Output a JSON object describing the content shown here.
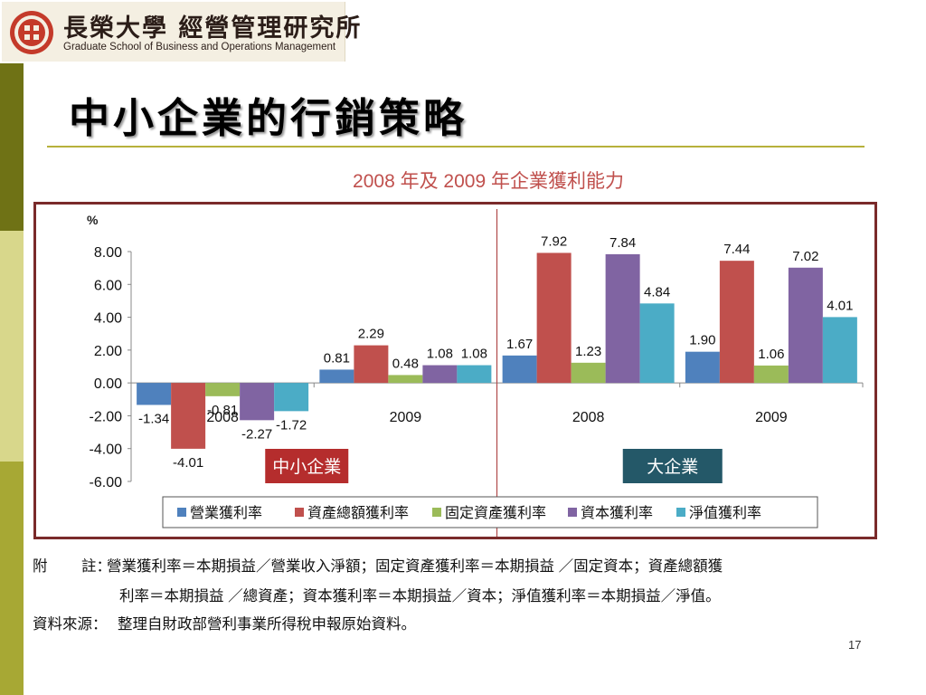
{
  "logo": {
    "name_cn": "長榮大學 經營管理研究所",
    "name_en": "Graduate School of Business and Operations Management"
  },
  "slide": {
    "title": "中小企業的行銷策略",
    "page_number": "17"
  },
  "chart_data": {
    "type": "bar",
    "title": "2008 年及 2009 年企業獲利能力",
    "ylabel": "%",
    "ylim": [
      -6,
      8
    ],
    "yticks": [
      "8.00",
      "6.00",
      "4.00",
      "2.00",
      "0.00",
      "-2.00",
      "-4.00",
      "-6.00"
    ],
    "series_names": [
      "營業獲利率",
      "資產總額獲利率",
      "固定資產獲利率",
      "資本獲利率",
      "淨值獲利率"
    ],
    "series_colors": [
      "#4f81bd",
      "#c0504d",
      "#9bbb59",
      "#8064a2",
      "#4bacc6"
    ],
    "groups": [
      {
        "label": "中小企業",
        "label_bg": "#b52d2d",
        "periods": [
          {
            "year": "2008",
            "values": [
              -1.34,
              -4.01,
              -0.81,
              -2.27,
              -1.72
            ],
            "labels": [
              "-1.34",
              "-4.01",
              "-0.81",
              "-2.27",
              "-1.72"
            ]
          },
          {
            "year": "2009",
            "values": [
              0.81,
              2.29,
              0.48,
              1.08,
              1.08
            ],
            "labels": [
              "0.81",
              "2.29",
              "0.48",
              "1.08",
              "1.08"
            ]
          }
        ]
      },
      {
        "label": "大企業",
        "label_bg": "#245868",
        "periods": [
          {
            "year": "2008",
            "values": [
              1.67,
              7.92,
              1.23,
              7.84,
              4.84
            ],
            "labels": [
              "1.67",
              "7.92",
              "1.23",
              "7.84",
              "4.84"
            ]
          },
          {
            "year": "2009",
            "values": [
              1.9,
              7.44,
              1.06,
              7.02,
              4.01
            ],
            "labels": [
              "1.90",
              "7.44",
              "1.06",
              "7.02",
              "4.01"
            ]
          }
        ]
      }
    ]
  },
  "notes": {
    "note_label": "附",
    "note_label2": "註：",
    "note_line1": "營業獲利率＝本期損益／營業收入淨額；固定資產獲利率＝本期損益 ／固定資本；資產總額獲",
    "note_line2": "利率＝本期損益 ／總資產；資本獲利率＝本期損益／資本；淨值獲利率＝本期損益／淨值。",
    "source_label": "資料來源：",
    "source_text": "整理自財政部營利事業所得稅申報原始資料。"
  }
}
